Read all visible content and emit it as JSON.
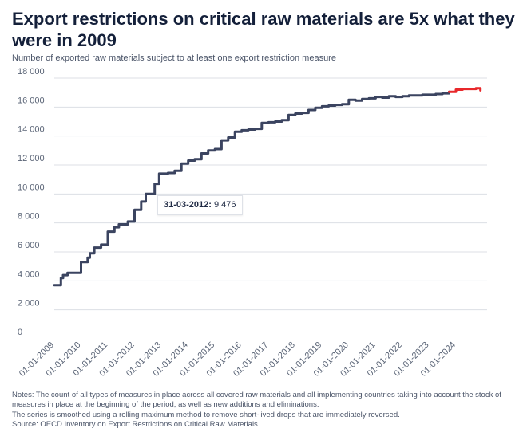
{
  "title": "Export restrictions on critical raw materials are 5x what they were in 2009",
  "subtitle": "Number of exported raw materials subject to at least one export restriction measure",
  "tooltip": {
    "date": "31-03-2012:",
    "value": "9 476"
  },
  "notes": [
    "Notes: The count of all types of measures in place across all covered raw materials and all implementing countries taking into account the stock of measures in place at the beginning of the period, as well as new additions and eliminations.",
    "The series is smoothed using a rolling maximum method to remove short-lived drops that are immediately reversed.",
    "Source: OECD Inventory on Export Restrictions on Critical Raw Materials."
  ],
  "colors": {
    "main_series": "#3b4460",
    "projection": "#e8282b",
    "grid": "#dcdfe5"
  },
  "chart_data": {
    "type": "line",
    "title": "Export restrictions on critical raw materials are 5x what they were in 2009",
    "ylim": [
      0,
      18000
    ],
    "yticks": [
      0,
      2000,
      4000,
      6000,
      8000,
      10000,
      12000,
      14000,
      16000,
      18000
    ],
    "ytick_labels": [
      "0",
      "2 000",
      "4 000",
      "6 000",
      "8 000",
      "10 000",
      "12 000",
      "14 000",
      "16 000",
      "18 000"
    ],
    "xlim": [
      "2009-01-01",
      "2025-03-01"
    ],
    "xticks": [
      "2009-01-01",
      "2010-01-01",
      "2011-01-01",
      "2012-01-01",
      "2013-01-01",
      "2014-01-01",
      "2015-01-01",
      "2016-01-01",
      "2017-01-01",
      "2018-01-01",
      "2019-01-01",
      "2020-01-01",
      "2021-01-01",
      "2022-01-01",
      "2023-01-01",
      "2024-01-01"
    ],
    "xtick_labels": [
      "01-01-2009",
      "01-01-2010",
      "01-01-2011",
      "01-01-2012",
      "01-01-2013",
      "01-01-2014",
      "01-01-2015",
      "01-01-2016",
      "01-01-2017",
      "01-01-2018",
      "01-01-2019",
      "01-01-2020",
      "01-01-2021",
      "01-01-2022",
      "01-01-2023",
      "01-01-2024"
    ],
    "grid": true,
    "series": [
      {
        "color": "#3b4460",
        "x": [
          "2009-01-01",
          "2009-04-01",
          "2009-05-01",
          "2009-07-01",
          "2010-01-01",
          "2010-04-01",
          "2010-05-01",
          "2010-07-01",
          "2010-10-01",
          "2011-01-01",
          "2011-04-01",
          "2011-06-01",
          "2011-10-01",
          "2012-01-01",
          "2012-03-31",
          "2012-06-01",
          "2012-10-01",
          "2012-12-01",
          "2013-04-01",
          "2013-07-01",
          "2013-10-01",
          "2014-01-01",
          "2014-04-01",
          "2014-07-01",
          "2014-10-01",
          "2015-01-01",
          "2015-04-01",
          "2015-07-01",
          "2015-10-01",
          "2016-01-01",
          "2016-04-01",
          "2016-07-01",
          "2016-10-01",
          "2017-01-01",
          "2017-04-01",
          "2017-07-01",
          "2017-10-01",
          "2018-01-01",
          "2018-04-01",
          "2018-07-01",
          "2018-10-01",
          "2019-01-01",
          "2019-04-01",
          "2019-07-01",
          "2019-10-01",
          "2020-01-01",
          "2020-04-01",
          "2020-07-01",
          "2020-10-01",
          "2021-01-01",
          "2021-04-01",
          "2021-07-01",
          "2021-10-01",
          "2022-01-01",
          "2022-04-01",
          "2022-07-01",
          "2022-10-01",
          "2023-01-01",
          "2023-04-01",
          "2023-07-01",
          "2023-10-01"
        ],
        "y": [
          3700,
          4200,
          4400,
          4550,
          5300,
          5600,
          5900,
          6300,
          6500,
          7400,
          7700,
          7900,
          8100,
          8900,
          9476,
          10000,
          10700,
          11400,
          11450,
          11600,
          12100,
          12300,
          12400,
          12800,
          13000,
          13100,
          13700,
          13900,
          14300,
          14400,
          14450,
          14500,
          14900,
          14950,
          15000,
          15100,
          15450,
          15550,
          15600,
          15800,
          15950,
          16050,
          16100,
          16150,
          16200,
          16500,
          16450,
          16550,
          16600,
          16700,
          16650,
          16750,
          16700,
          16750,
          16800,
          16800,
          16850,
          16850,
          16900,
          16950,
          17050
        ]
      },
      {
        "color": "#e8282b",
        "x": [
          "2023-10-01",
          "2024-01-01",
          "2024-04-01",
          "2024-07-01",
          "2024-10-01",
          "2024-12-01"
        ],
        "y": [
          17050,
          17200,
          17250,
          17250,
          17300,
          17150
        ]
      }
    ]
  }
}
